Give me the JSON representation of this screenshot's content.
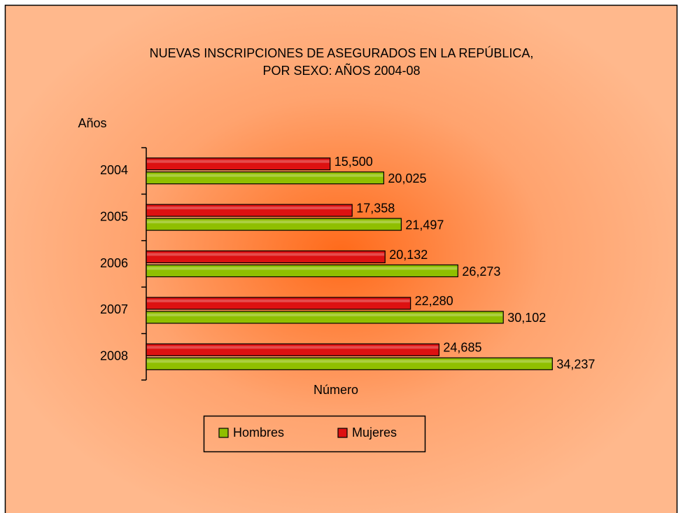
{
  "chart_data": {
    "type": "hbar",
    "title": [
      "NUEVAS INSCRIPCIONES DE ASEGURADOS EN LA REPÚBLICA,",
      "POR SEXO:  AÑOS 2004-08"
    ],
    "y_label": "Años",
    "x_label": "Número",
    "categories": [
      "2004",
      "2005",
      "2006",
      "2007",
      "2008"
    ],
    "series": [
      {
        "name": "Hombres",
        "color": "#8fbf00",
        "values": [
          20025,
          21497,
          26273,
          30102,
          34237
        ],
        "value_labels": [
          "20,025",
          "21,497",
          "26,273",
          "30,102",
          "34,237"
        ]
      },
      {
        "name": "Mujeres",
        "color": "#dd1111",
        "values": [
          15500,
          17358,
          20132,
          22280,
          24685
        ],
        "value_labels": [
          "15,500",
          "17,358",
          "20,132",
          "22,280",
          "24,685"
        ]
      }
    ],
    "xlim": [
      0,
      40000
    ],
    "legend": "bottom"
  }
}
